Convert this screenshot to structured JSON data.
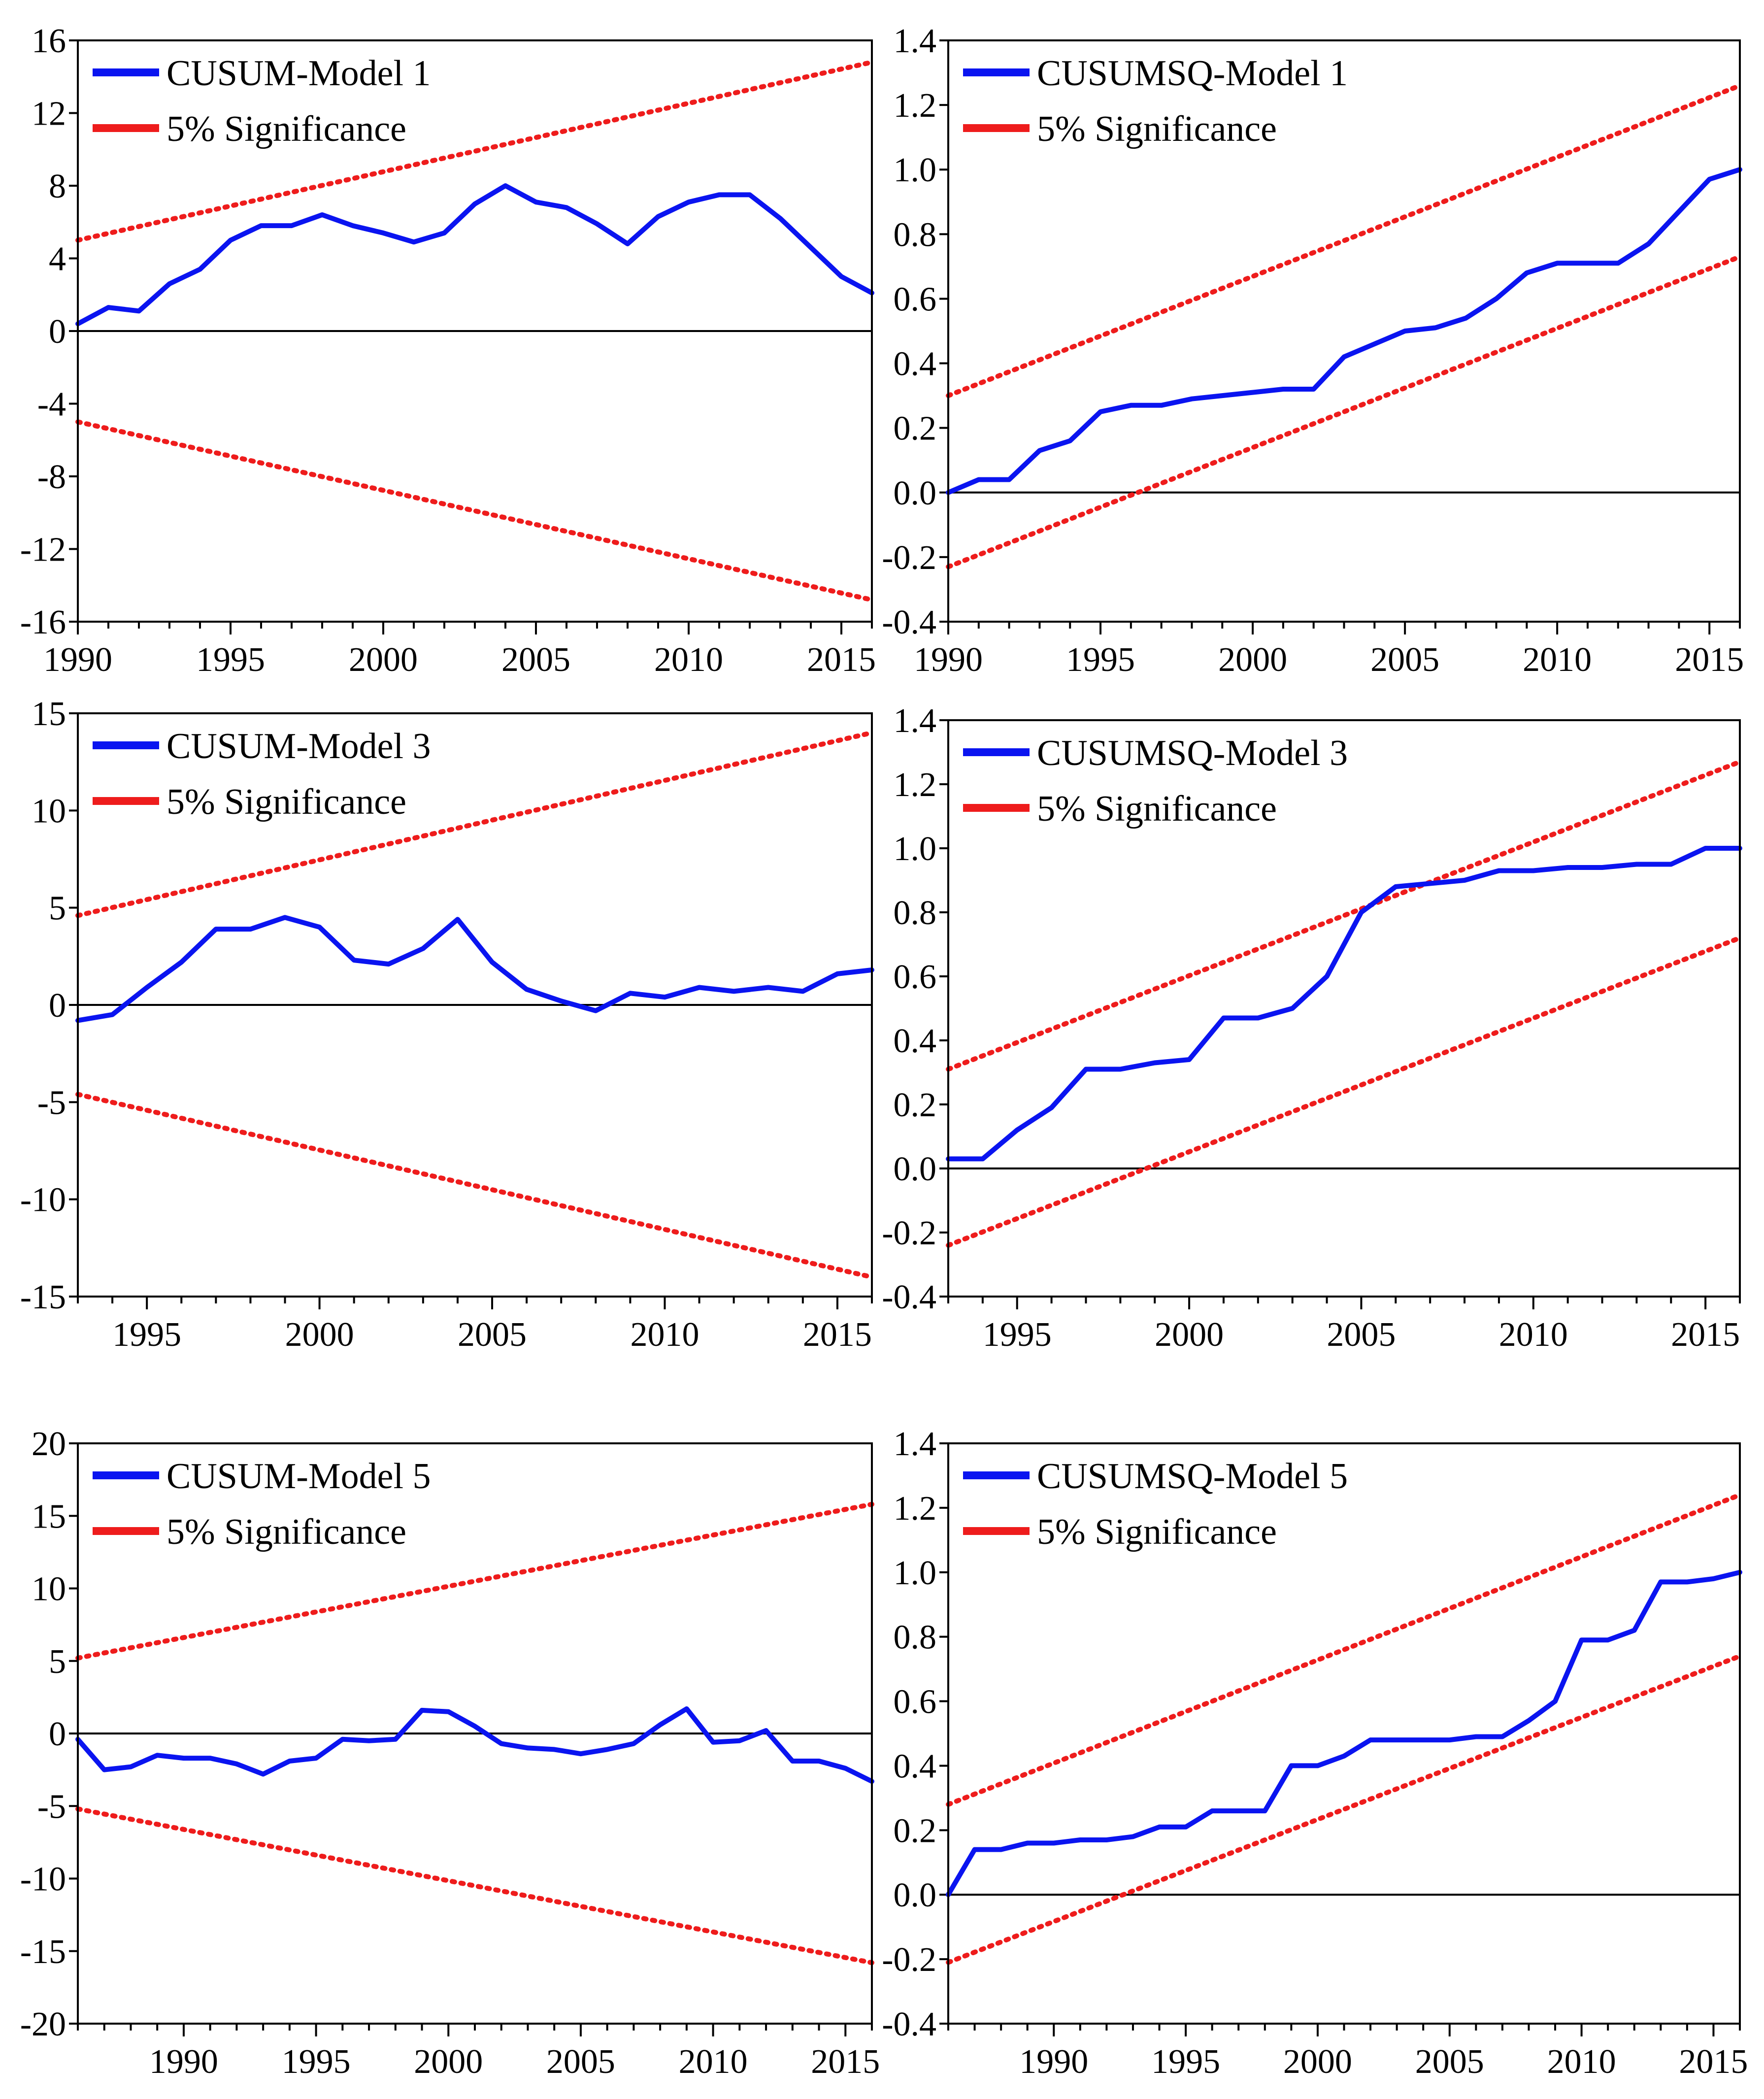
{
  "colors": {
    "series": "#0a14f0",
    "bound": "#ee1c1c",
    "axis": "#000000",
    "background": "#ffffff"
  },
  "chart_data": [
    {
      "type": "line",
      "id": "cusum-model-1",
      "xlim": [
        1990,
        2016
      ],
      "ylim": [
        -16,
        16
      ],
      "xticks": [
        1990,
        1995,
        2000,
        2005,
        2010,
        2015
      ],
      "xtick_labels": [
        "1990",
        "1995",
        "2000",
        "2005",
        "2010",
        "2015"
      ],
      "yticks": [
        16,
        12,
        8,
        4,
        0,
        -4,
        -8,
        -12,
        -16
      ],
      "ytick_labels": [
        "16",
        "12",
        "8",
        "4",
        "0",
        "-4",
        "-8",
        "-12",
        "-16"
      ],
      "series": [
        {
          "name": "CUSUM-Model 1",
          "x": [
            1990,
            1991,
            1992,
            1993,
            1994,
            1995,
            1996,
            1997,
            1998,
            1999,
            2000,
            2001,
            2002,
            2003,
            2004,
            2005,
            2006,
            2007,
            2008,
            2009,
            2010,
            2011,
            2012,
            2013,
            2014,
            2015,
            2016
          ],
          "values": [
            0.4,
            1.3,
            1.1,
            2.6,
            3.4,
            5.0,
            5.8,
            5.8,
            6.4,
            5.8,
            5.4,
            4.9,
            5.4,
            7.0,
            8.0,
            7.1,
            6.8,
            5.9,
            4.8,
            6.3,
            7.1,
            7.5,
            7.5,
            6.2,
            4.6,
            3.0,
            2.1
          ]
        },
        {
          "name": "5% Significance",
          "x": [
            1990,
            2016
          ],
          "upper": [
            5.0,
            14.8
          ],
          "lower": [
            -5.0,
            -14.8
          ]
        }
      ]
    },
    {
      "type": "line",
      "id": "cusumsq-model-1",
      "xlim": [
        1990,
        2016
      ],
      "ylim": [
        -0.4,
        1.4
      ],
      "xticks": [
        1990,
        1995,
        2000,
        2005,
        2010,
        2015
      ],
      "xtick_labels": [
        "1990",
        "1995",
        "2000",
        "2005",
        "2010",
        "2015"
      ],
      "yticks": [
        1.4,
        1.2,
        1.0,
        0.8,
        0.6,
        0.4,
        0.2,
        0.0,
        -0.2,
        -0.4
      ],
      "ytick_labels": [
        "1.4",
        "1.2",
        "1.0",
        "0.8",
        "0.6",
        "0.4",
        "0.2",
        "0.0",
        "-0.2",
        "-0.4"
      ],
      "series": [
        {
          "name": "CUSUMSQ-Model 1",
          "x": [
            1990,
            1991,
            1992,
            1993,
            1994,
            1995,
            1996,
            1997,
            1998,
            1999,
            2000,
            2001,
            2002,
            2003,
            2004,
            2005,
            2006,
            2007,
            2008,
            2009,
            2010,
            2011,
            2012,
            2013,
            2014,
            2015,
            2016
          ],
          "values": [
            0.0,
            0.04,
            0.04,
            0.13,
            0.16,
            0.25,
            0.27,
            0.27,
            0.29,
            0.3,
            0.31,
            0.32,
            0.32,
            0.42,
            0.46,
            0.5,
            0.51,
            0.54,
            0.6,
            0.68,
            0.71,
            0.71,
            0.71,
            0.77,
            0.87,
            0.97,
            1.0
          ]
        },
        {
          "name": "5% Significance",
          "x": [
            1990,
            2016
          ],
          "upper": [
            0.3,
            1.26
          ],
          "lower": [
            -0.23,
            0.73
          ]
        }
      ]
    },
    {
      "type": "line",
      "id": "cusum-model-3",
      "xlim": [
        1993,
        2016
      ],
      "ylim": [
        -15,
        15
      ],
      "xticks": [
        1995,
        2000,
        2005,
        2010,
        2015
      ],
      "xtick_labels": [
        "1995",
        "2000",
        "2005",
        "2010",
        "2015"
      ],
      "yticks": [
        15,
        10,
        5,
        0,
        -5,
        -10,
        -15
      ],
      "ytick_labels": [
        "15",
        "10",
        "5",
        "0",
        "-5",
        "-10",
        "-15"
      ],
      "series": [
        {
          "name": "CUSUM-Model 3",
          "x": [
            1993,
            1994,
            1995,
            1996,
            1997,
            1998,
            1999,
            2000,
            2001,
            2002,
            2003,
            2004,
            2005,
            2006,
            2007,
            2008,
            2009,
            2010,
            2011,
            2012,
            2013,
            2014,
            2015,
            2016
          ],
          "values": [
            -0.8,
            -0.5,
            0.9,
            2.2,
            3.9,
            3.9,
            4.5,
            4.0,
            2.3,
            2.1,
            2.9,
            4.4,
            2.2,
            0.8,
            0.2,
            -0.3,
            0.6,
            0.4,
            0.9,
            0.7,
            0.9,
            0.7,
            1.6,
            1.8
          ]
        },
        {
          "name": "5% Significance",
          "x": [
            1993,
            2016
          ],
          "upper": [
            4.6,
            14.0
          ],
          "lower": [
            -4.6,
            -14.0
          ]
        }
      ]
    },
    {
      "type": "line",
      "id": "cusumsq-model-3",
      "xlim": [
        1993,
        2016
      ],
      "ylim": [
        -0.4,
        1.4
      ],
      "xticks": [
        1995,
        2000,
        2005,
        2010,
        2015
      ],
      "xtick_labels": [
        "1995",
        "2000",
        "2005",
        "2010",
        "2015"
      ],
      "yticks": [
        1.4,
        1.2,
        1.0,
        0.8,
        0.6,
        0.4,
        0.2,
        0.0,
        -0.2,
        -0.4
      ],
      "ytick_labels": [
        "1.4",
        "1.2",
        "1.0",
        "0.8",
        "0.6",
        "0.4",
        "0.2",
        "0.0",
        "-0.2",
        "-0.4"
      ],
      "series": [
        {
          "name": "CUSUMSQ-Model 3",
          "x": [
            1993,
            1994,
            1995,
            1996,
            1997,
            1998,
            1999,
            2000,
            2001,
            2002,
            2003,
            2004,
            2005,
            2006,
            2007,
            2008,
            2009,
            2010,
            2011,
            2012,
            2013,
            2014,
            2015,
            2016
          ],
          "values": [
            0.03,
            0.03,
            0.12,
            0.19,
            0.31,
            0.31,
            0.33,
            0.34,
            0.47,
            0.47,
            0.5,
            0.6,
            0.8,
            0.88,
            0.89,
            0.9,
            0.93,
            0.93,
            0.94,
            0.94,
            0.95,
            0.95,
            1.0,
            1.0
          ]
        },
        {
          "name": "5% Significance",
          "x": [
            1993,
            2016
          ],
          "upper": [
            0.31,
            1.27
          ],
          "lower": [
            -0.24,
            0.72
          ]
        }
      ]
    },
    {
      "type": "line",
      "id": "cusum-model-5",
      "xlim": [
        1986,
        2016
      ],
      "ylim": [
        -20,
        20
      ],
      "xticks": [
        1990,
        1995,
        2000,
        2005,
        2010,
        2015
      ],
      "xtick_labels": [
        "1990",
        "1995",
        "2000",
        "2005",
        "2010",
        "2015"
      ],
      "yticks": [
        20,
        15,
        10,
        5,
        0,
        -5,
        -10,
        -15,
        -20
      ],
      "ytick_labels": [
        "20",
        "15",
        "10",
        "5",
        "0",
        "-5",
        "-10",
        "-15",
        "-20"
      ],
      "series": [
        {
          "name": "CUSUM-Model 5",
          "x": [
            1986,
            1987,
            1988,
            1989,
            1990,
            1991,
            1992,
            1993,
            1994,
            1995,
            1996,
            1997,
            1998,
            1999,
            2000,
            2001,
            2002,
            2003,
            2004,
            2005,
            2006,
            2007,
            2008,
            2009,
            2010,
            2011,
            2012,
            2013,
            2014,
            2015,
            2016
          ],
          "values": [
            -0.4,
            -2.5,
            -2.3,
            -1.5,
            -1.7,
            -1.7,
            -2.1,
            -2.8,
            -1.9,
            -1.7,
            -0.4,
            -0.5,
            -0.4,
            1.6,
            1.5,
            0.5,
            -0.7,
            -1.0,
            -1.1,
            -1.4,
            -1.1,
            -0.7,
            0.6,
            1.7,
            -0.6,
            -0.5,
            0.2,
            -1.9,
            -1.9,
            -2.4,
            -3.3
          ]
        },
        {
          "name": "5% Significance",
          "x": [
            1986,
            2016
          ],
          "upper": [
            5.2,
            15.8
          ],
          "lower": [
            -5.2,
            -15.8
          ]
        }
      ]
    },
    {
      "type": "line",
      "id": "cusumsq-model-5",
      "xlim": [
        1986,
        2016
      ],
      "ylim": [
        -0.4,
        1.4
      ],
      "xticks": [
        1990,
        1995,
        2000,
        2005,
        2010,
        2015
      ],
      "xtick_labels": [
        "1990",
        "1995",
        "2000",
        "2005",
        "2010",
        "2015"
      ],
      "yticks": [
        1.4,
        1.2,
        1.0,
        0.8,
        0.6,
        0.4,
        0.2,
        0.0,
        -0.2,
        -0.4
      ],
      "ytick_labels": [
        "1.4",
        "1.2",
        "1.0",
        "0.8",
        "0.6",
        "0.4",
        "0.2",
        "0.0",
        "-0.2",
        "-0.4"
      ],
      "series": [
        {
          "name": "CUSUMSQ-Model 5",
          "x": [
            1986,
            1987,
            1988,
            1989,
            1990,
            1991,
            1992,
            1993,
            1994,
            1995,
            1996,
            1997,
            1998,
            1999,
            2000,
            2001,
            2002,
            2003,
            2004,
            2005,
            2006,
            2007,
            2008,
            2009,
            2010,
            2011,
            2012,
            2013,
            2014,
            2015,
            2016
          ],
          "values": [
            0.0,
            0.14,
            0.14,
            0.16,
            0.16,
            0.17,
            0.17,
            0.18,
            0.21,
            0.21,
            0.26,
            0.26,
            0.26,
            0.4,
            0.4,
            0.43,
            0.48,
            0.48,
            0.48,
            0.48,
            0.49,
            0.49,
            0.54,
            0.6,
            0.79,
            0.79,
            0.82,
            0.97,
            0.97,
            0.98,
            1.0
          ]
        },
        {
          "name": "5% Significance",
          "x": [
            1986,
            2016
          ],
          "upper": [
            0.28,
            1.24
          ],
          "lower": [
            -0.21,
            0.74
          ]
        }
      ]
    }
  ]
}
